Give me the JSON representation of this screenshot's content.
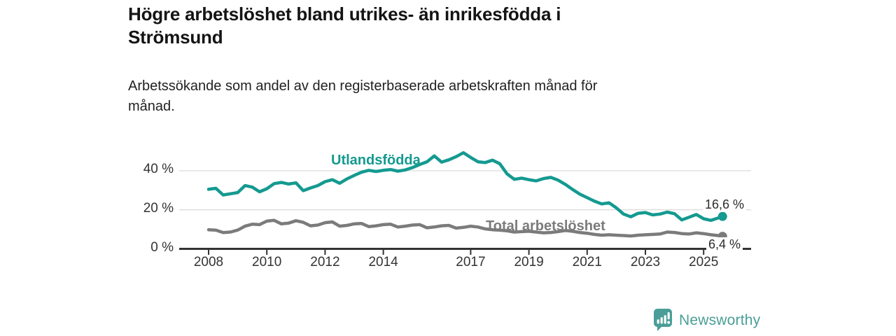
{
  "header": {
    "title_line1": "Högre arbetslöshet bland utrikes- än inrikesfödda i",
    "title_line2": "Strömsund",
    "subtitle_line1": "Arbetssökande som andel av den registerbaserade arbetskraften månad för",
    "subtitle_line2": "månad."
  },
  "chart_data": {
    "type": "line",
    "title": "Högre arbetslöshet bland utrikes- än inrikesfödda i Strömsund",
    "subtitle": "Arbetssökande som andel av den registerbaserade arbetskraften månad för månad.",
    "unit": "%",
    "xlabel": "",
    "ylabel": "",
    "xlim": [
      2006.9,
      2026.5
    ],
    "ylim": [
      0,
      50
    ],
    "grid": "horizontal",
    "legend_position": "inline-labels-on-chart",
    "x_ticks": [
      {
        "year": 2008,
        "label": "2008"
      },
      {
        "year": 2010,
        "label": "2010"
      },
      {
        "year": 2012,
        "label": "2012"
      },
      {
        "year": 2014,
        "label": "2014"
      },
      {
        "year": 2017,
        "label": "2017"
      },
      {
        "year": 2019,
        "label": "2019"
      },
      {
        "year": 2021,
        "label": "2021"
      },
      {
        "year": 2023,
        "label": "2023"
      },
      {
        "year": 2025,
        "label": "2025"
      }
    ],
    "y_ticks": [
      {
        "value": 0,
        "label": "0 %"
      },
      {
        "value": 20,
        "label": "20 %"
      },
      {
        "value": 40,
        "label": "40 %"
      }
    ],
    "series": [
      {
        "name": "Utlandsfödda",
        "color": "#149a90",
        "end_label": "16,6 %",
        "end_value": 16.6,
        "points": [
          [
            2008.0,
            30.5
          ],
          [
            2008.25,
            31.0
          ],
          [
            2008.5,
            27.6
          ],
          [
            2008.75,
            28.2
          ],
          [
            2009.0,
            28.8
          ],
          [
            2009.25,
            32.4
          ],
          [
            2009.5,
            31.6
          ],
          [
            2009.75,
            29.2
          ],
          [
            2010.0,
            30.8
          ],
          [
            2010.25,
            33.4
          ],
          [
            2010.5,
            34.0
          ],
          [
            2010.75,
            33.2
          ],
          [
            2011.0,
            33.8
          ],
          [
            2011.25,
            29.8
          ],
          [
            2011.5,
            31.2
          ],
          [
            2011.75,
            32.4
          ],
          [
            2012.0,
            34.4
          ],
          [
            2012.25,
            35.4
          ],
          [
            2012.5,
            33.6
          ],
          [
            2012.75,
            35.8
          ],
          [
            2013.0,
            37.6
          ],
          [
            2013.25,
            39.2
          ],
          [
            2013.5,
            40.2
          ],
          [
            2013.75,
            39.6
          ],
          [
            2014.0,
            40.2
          ],
          [
            2014.25,
            40.6
          ],
          [
            2014.5,
            39.8
          ],
          [
            2014.75,
            40.4
          ],
          [
            2015.0,
            41.6
          ],
          [
            2015.25,
            43.2
          ],
          [
            2015.5,
            44.6
          ],
          [
            2015.75,
            47.6
          ],
          [
            2016.0,
            44.4
          ],
          [
            2016.25,
            45.6
          ],
          [
            2016.5,
            47.2
          ],
          [
            2016.75,
            49.2
          ],
          [
            2017.0,
            46.8
          ],
          [
            2017.25,
            44.6
          ],
          [
            2017.5,
            44.2
          ],
          [
            2017.75,
            45.4
          ],
          [
            2018.0,
            43.6
          ],
          [
            2018.25,
            38.4
          ],
          [
            2018.5,
            35.6
          ],
          [
            2018.75,
            36.2
          ],
          [
            2019.0,
            35.4
          ],
          [
            2019.25,
            34.8
          ],
          [
            2019.5,
            36.0
          ],
          [
            2019.75,
            36.6
          ],
          [
            2020.0,
            35.2
          ],
          [
            2020.25,
            33.0
          ],
          [
            2020.5,
            30.4
          ],
          [
            2020.75,
            28.0
          ],
          [
            2021.0,
            26.2
          ],
          [
            2021.25,
            24.4
          ],
          [
            2021.5,
            23.0
          ],
          [
            2021.75,
            23.6
          ],
          [
            2022.0,
            21.0
          ],
          [
            2022.25,
            17.8
          ],
          [
            2022.5,
            16.4
          ],
          [
            2022.75,
            18.2
          ],
          [
            2023.0,
            18.6
          ],
          [
            2023.25,
            17.4
          ],
          [
            2023.5,
            17.8
          ],
          [
            2023.75,
            18.8
          ],
          [
            2024.0,
            18.0
          ],
          [
            2024.25,
            14.8
          ],
          [
            2024.5,
            16.2
          ],
          [
            2024.75,
            17.6
          ],
          [
            2025.0,
            15.4
          ],
          [
            2025.25,
            14.6
          ],
          [
            2025.5,
            15.8
          ],
          [
            2025.65,
            16.6
          ]
        ]
      },
      {
        "name": "Total arbetslöshet",
        "color": "#7b7b7b",
        "end_label": "6,4 %",
        "end_value": 6.4,
        "points": [
          [
            2008.0,
            9.8
          ],
          [
            2008.25,
            9.6
          ],
          [
            2008.5,
            8.3
          ],
          [
            2008.75,
            8.6
          ],
          [
            2009.0,
            9.6
          ],
          [
            2009.25,
            11.6
          ],
          [
            2009.5,
            12.6
          ],
          [
            2009.75,
            12.4
          ],
          [
            2010.0,
            14.2
          ],
          [
            2010.25,
            14.6
          ],
          [
            2010.5,
            12.8
          ],
          [
            2010.75,
            13.2
          ],
          [
            2011.0,
            14.4
          ],
          [
            2011.25,
            13.6
          ],
          [
            2011.5,
            11.8
          ],
          [
            2011.75,
            12.2
          ],
          [
            2012.0,
            13.4
          ],
          [
            2012.25,
            13.8
          ],
          [
            2012.5,
            11.6
          ],
          [
            2012.75,
            12.0
          ],
          [
            2013.0,
            12.8
          ],
          [
            2013.25,
            13.0
          ],
          [
            2013.5,
            11.4
          ],
          [
            2013.75,
            11.8
          ],
          [
            2014.0,
            12.4
          ],
          [
            2014.25,
            12.6
          ],
          [
            2014.5,
            11.2
          ],
          [
            2014.75,
            11.6
          ],
          [
            2015.0,
            12.2
          ],
          [
            2015.25,
            12.4
          ],
          [
            2015.5,
            10.8
          ],
          [
            2015.75,
            11.2
          ],
          [
            2016.0,
            11.8
          ],
          [
            2016.25,
            12.0
          ],
          [
            2016.5,
            10.6
          ],
          [
            2016.75,
            11.0
          ],
          [
            2017.0,
            11.6
          ],
          [
            2017.25,
            11.2
          ],
          [
            2017.5,
            10.2
          ],
          [
            2017.75,
            9.8
          ],
          [
            2018.0,
            9.6
          ],
          [
            2018.25,
            9.2
          ],
          [
            2018.5,
            8.6
          ],
          [
            2018.75,
            8.8
          ],
          [
            2019.0,
            9.0
          ],
          [
            2019.25,
            8.6
          ],
          [
            2019.5,
            8.2
          ],
          [
            2019.75,
            8.4
          ],
          [
            2020.0,
            8.8
          ],
          [
            2020.25,
            9.4
          ],
          [
            2020.5,
            9.0
          ],
          [
            2020.75,
            8.4
          ],
          [
            2021.0,
            8.0
          ],
          [
            2021.25,
            7.4
          ],
          [
            2021.5,
            7.0
          ],
          [
            2021.75,
            7.2
          ],
          [
            2022.0,
            7.0
          ],
          [
            2022.25,
            6.8
          ],
          [
            2022.5,
            6.6
          ],
          [
            2022.75,
            7.0
          ],
          [
            2023.0,
            7.2
          ],
          [
            2023.25,
            7.4
          ],
          [
            2023.5,
            7.6
          ],
          [
            2023.75,
            8.6
          ],
          [
            2024.0,
            8.4
          ],
          [
            2024.25,
            7.8
          ],
          [
            2024.5,
            7.6
          ],
          [
            2024.75,
            8.2
          ],
          [
            2025.0,
            7.8
          ],
          [
            2025.25,
            7.2
          ],
          [
            2025.5,
            6.8
          ],
          [
            2025.65,
            6.4
          ]
        ]
      }
    ],
    "style": {
      "grid_color": "#dcdcdc",
      "axis_color": "#333333",
      "tick_label_color": "#333333",
      "value_label_color": "#2b2b2b"
    }
  },
  "footer": {
    "brand": "Newsworthy",
    "brand_color": "#4a9e97",
    "logo_icon": "newsworthy-speech-bubble-bar-chart-icon"
  }
}
